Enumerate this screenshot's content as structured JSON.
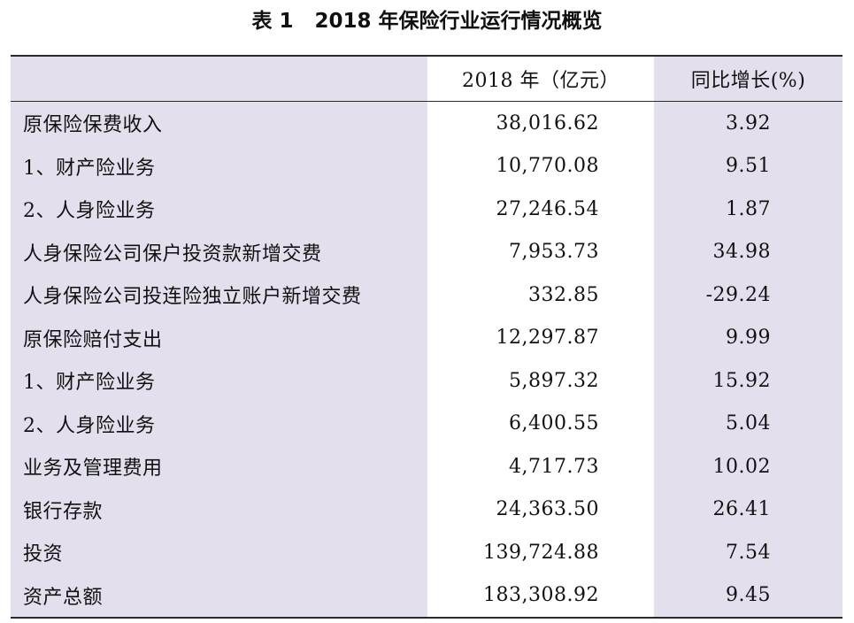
{
  "title": "表 1   2018 年保险行业运行情况概览",
  "header": {
    "col1": "",
    "col2": "2018 年（亿元）",
    "col3": "同比增长(%)"
  },
  "rows": [
    {
      "label": "原保险保费收入",
      "value": "38,016.62",
      "growth": "3.92"
    },
    {
      "label": "1、财产险业务",
      "value": "10,770.08",
      "growth": "9.51"
    },
    {
      "label": "2、人身险业务",
      "value": "27,246.54",
      "growth": "1.87"
    },
    {
      "label": "人身保险公司保户投资款新增交费",
      "value": "7,953.73",
      "growth": "34.98"
    },
    {
      "label": "人身保险公司投连险独立账户新增交费",
      "value": "332.85",
      "growth": "-29.24"
    },
    {
      "label": "原保险赔付支出",
      "value": "12,297.87",
      "growth": "9.99"
    },
    {
      "label": "1、财产险业务",
      "value": "5,897.32",
      "growth": "15.92"
    },
    {
      "label": "2、人身险业务",
      "value": "6,400.55",
      "growth": "5.04"
    },
    {
      "label": "业务及管理费用",
      "value": "4,717.73",
      "growth": "10.02"
    },
    {
      "label": "银行存款",
      "value": "24,363.50",
      "growth": "26.41"
    },
    {
      "label": "投资",
      "value": "139,724.88",
      "growth": "7.54"
    },
    {
      "label": "资产总额",
      "value": "183,308.92",
      "growth": "9.45"
    }
  ]
}
